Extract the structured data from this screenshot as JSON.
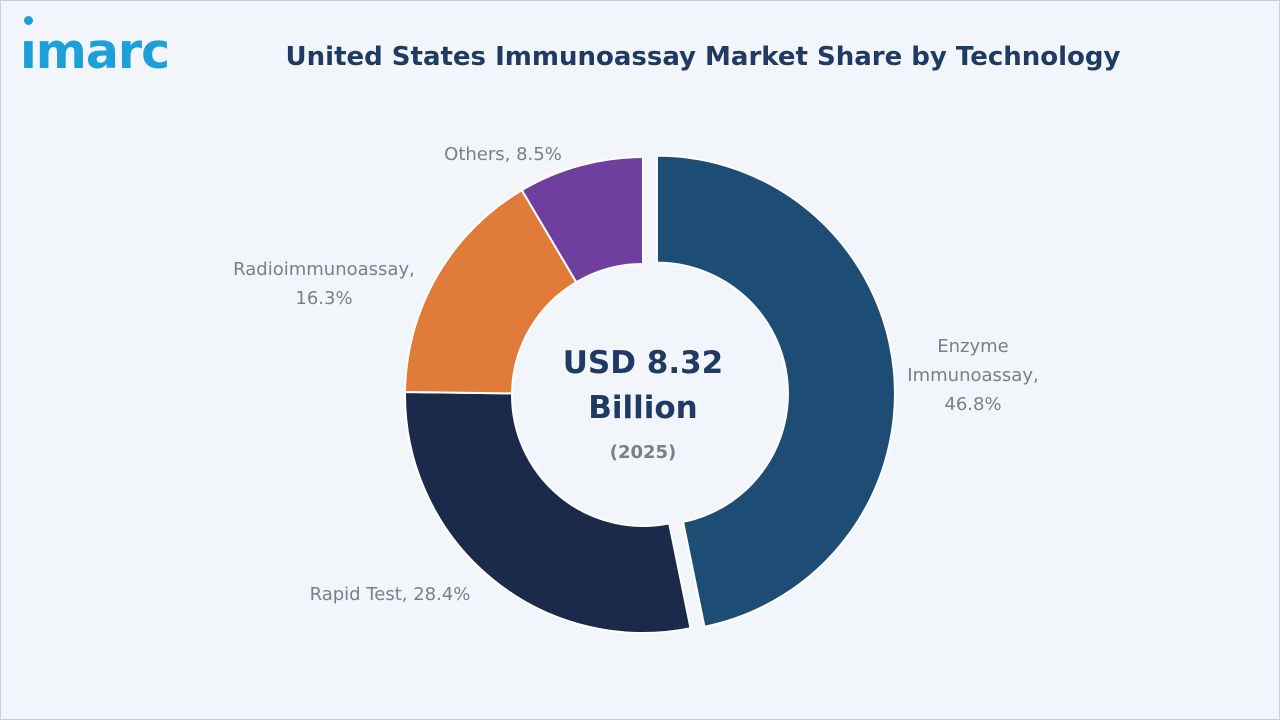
{
  "logo": {
    "text": "ımarc"
  },
  "chart_data": {
    "type": "pie",
    "title": "United States Immunoassay Market Share by Technology",
    "center_text": [
      "USD 8.32",
      "Billion"
    ],
    "center_subtext": "(2025)",
    "slices": [
      {
        "label": "Enzyme Immunoassay",
        "value": 46.8,
        "label_text": [
          "Enzyme",
          "Immunoassay,",
          "46.8%"
        ],
        "color": "#1d4c74",
        "exploded": true
      },
      {
        "label": "Rapid Test",
        "value": 28.4,
        "label_text": [
          "Rapid Test, 28.4%"
        ],
        "color": "#1b2a4b"
      },
      {
        "label": "Radioimmunoassay",
        "value": 16.3,
        "label_text": [
          "Radioimmunoassay,",
          "16.3%"
        ],
        "color": "#e07b39"
      },
      {
        "label": "Others",
        "value": 8.5,
        "label_text": [
          "Others, 8.5%"
        ],
        "color": "#6f3fa0"
      }
    ]
  }
}
